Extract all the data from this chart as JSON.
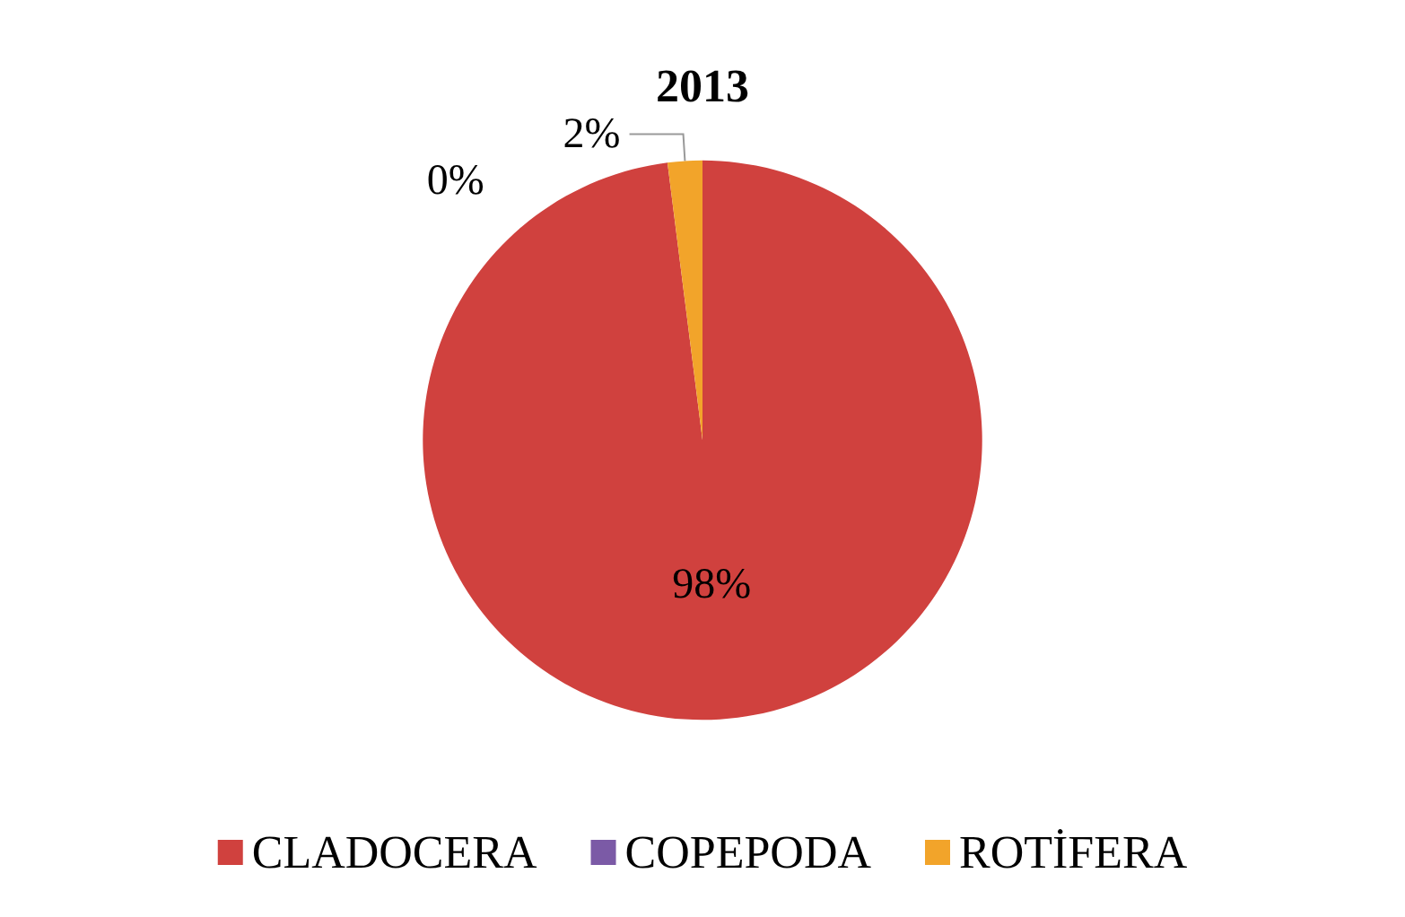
{
  "chart_data": {
    "type": "pie",
    "title": "2013",
    "categories": [
      "CLADOCERA",
      "COPEPODA",
      "ROTİFERA"
    ],
    "values": [
      98,
      0,
      2
    ],
    "colors": [
      "#d0413e",
      "#7b5aa6",
      "#f2a42a"
    ],
    "value_labels": [
      "98%",
      "0%",
      "2%"
    ],
    "legend": "bottom"
  }
}
